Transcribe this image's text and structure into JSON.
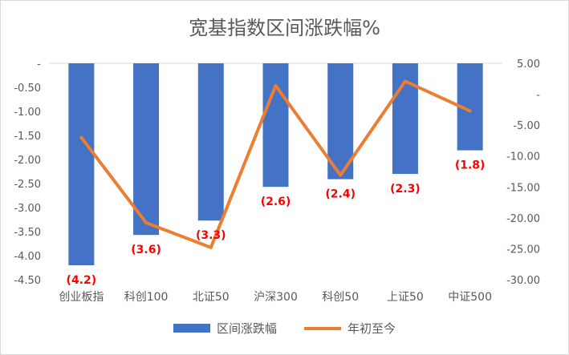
{
  "chart_data": {
    "type": "bar+line",
    "title": "宽基指数区间涨跌幅%",
    "categories": [
      "创业板指",
      "科创100",
      "北证50",
      "沪深300",
      "科创50",
      "上证50",
      "中证500"
    ],
    "series": [
      {
        "name": "区间涨跌幅",
        "type": "bar",
        "axis": "left",
        "color": "#4472c4",
        "values": [
          -4.2,
          -3.57,
          -3.27,
          -2.57,
          -2.41,
          -2.3,
          -1.81
        ],
        "data_labels": [
          "(4.2)",
          "(3.6)",
          "(3.3)",
          "(2.6)",
          "(2.4)",
          "(2.3)",
          "(1.8)"
        ]
      },
      {
        "name": "年初至今",
        "type": "line",
        "axis": "right",
        "color": "#ed7d31",
        "values": [
          -7.0,
          -20.8,
          -24.8,
          1.4,
          -13.1,
          2.1,
          -2.7
        ]
      }
    ],
    "y_left": {
      "min": -4.5,
      "max": 0,
      "step": 0.5,
      "tick_labels": [
        "-",
        "-0.50",
        "-1.00",
        "-1.50",
        "-2.00",
        "-2.50",
        "-3.00",
        "-3.50",
        "-4.00",
        "-4.50"
      ]
    },
    "y_right": {
      "min": -30,
      "max": 5,
      "step": 5,
      "tick_labels": [
        "5.00",
        "-",
        "-5.00",
        "-10.00",
        "-15.00",
        "-20.00",
        "-25.00",
        "-30.00"
      ]
    },
    "grid": false,
    "legend_position": "bottom",
    "data_label_color": "#ff0000"
  }
}
